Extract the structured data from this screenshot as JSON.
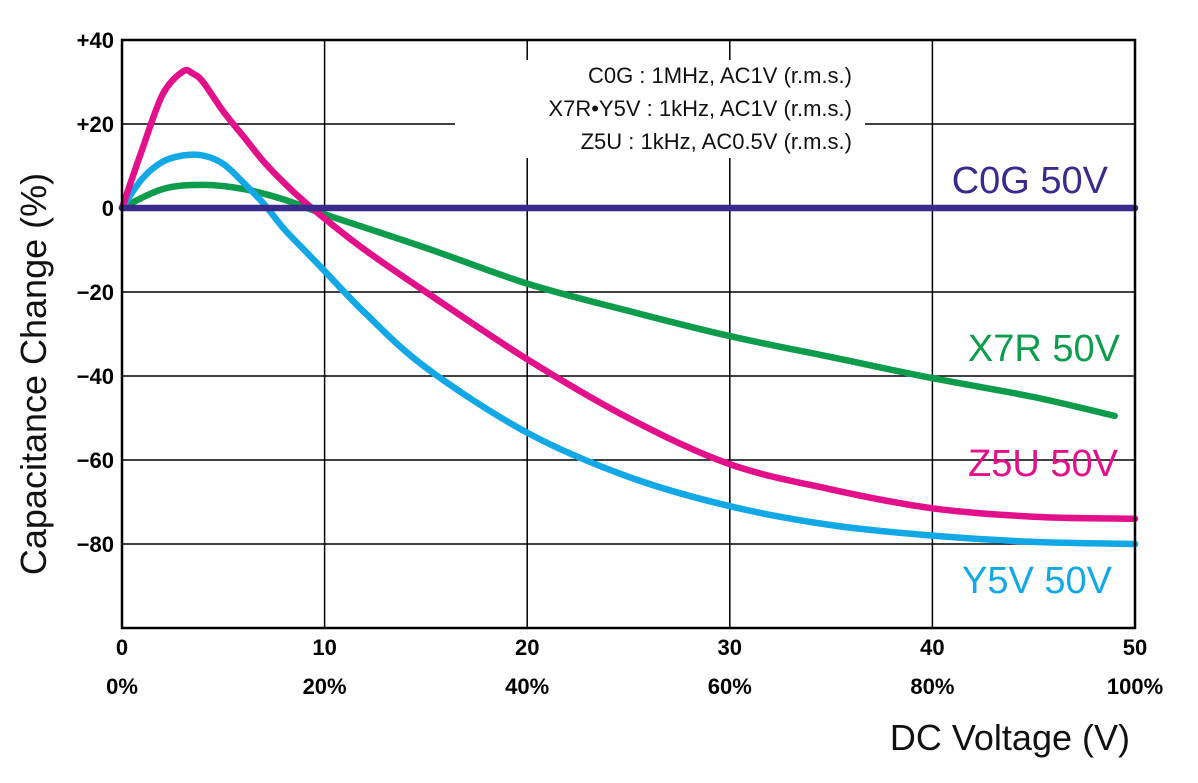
{
  "chart_data": {
    "type": "line",
    "ylabel": "Capacitance Change (%)",
    "xlabel": "DC Voltage (V)",
    "xlim": [
      0,
      50
    ],
    "ylim": [
      -100,
      40
    ],
    "grid": true,
    "x_ticks": [
      "0",
      "10",
      "20",
      "30",
      "40",
      "50"
    ],
    "x_ticks_percent": [
      "0%",
      "20%",
      "40%",
      "60%",
      "80%",
      "100%"
    ],
    "y_ticks": [
      {
        "value": 40,
        "label": "+40"
      },
      {
        "value": 20,
        "label": "+20"
      },
      {
        "value": 0,
        "label": "0"
      },
      {
        "value": -20,
        "label": "−20"
      },
      {
        "value": -40,
        "label": "−40"
      },
      {
        "value": -60,
        "label": "−60"
      },
      {
        "value": -80,
        "label": "−80"
      }
    ],
    "conditions": [
      "C0G : 1MHz, AC1V (r.m.s.)",
      "X7R•Y5V : 1kHz, AC1V (r.m.s.)",
      "Z5U : 1kHz, AC0.5V (r.m.s.)"
    ],
    "series": [
      {
        "name": "C0G 50V",
        "color": "#3a2a8c",
        "x": [
          0,
          10,
          20,
          30,
          40,
          50
        ],
        "y": [
          0,
          0,
          0,
          0,
          0,
          0
        ]
      },
      {
        "name": "X7R 50V",
        "color": "#0d9b4c",
        "x": [
          0,
          2,
          4,
          6,
          8,
          10,
          15,
          20,
          25,
          30,
          35,
          40,
          45,
          49
        ],
        "y": [
          0,
          4.5,
          5.5,
          4.5,
          2,
          -1.5,
          -9.5,
          -18,
          -24.5,
          -30.5,
          -35.5,
          -40.5,
          -45,
          -49.5
        ]
      },
      {
        "name": "Z5U 50V",
        "color": "#e2108a",
        "x": [
          0,
          1,
          2,
          3,
          3.5,
          4,
          5,
          6,
          7,
          8,
          9,
          10,
          12,
          15,
          20,
          25,
          30,
          35,
          40,
          45,
          50
        ],
        "y": [
          0,
          14,
          27,
          32.5,
          32,
          30,
          23,
          17,
          11,
          6,
          1.5,
          -2.5,
          -10,
          -20,
          -36,
          -50,
          -61,
          -67,
          -71.5,
          -73.5,
          -74
        ]
      },
      {
        "name": "Y5V 50V",
        "color": "#12a8e6",
        "x": [
          0,
          1,
          2,
          3,
          4,
          5,
          6,
          7,
          8,
          9,
          10,
          12,
          15,
          20,
          25,
          30,
          35,
          40,
          45,
          50
        ],
        "y": [
          0,
          7,
          11,
          12.5,
          12.5,
          10.5,
          6,
          1,
          -5,
          -10,
          -15,
          -25,
          -38,
          -53.5,
          -64,
          -71,
          -75.5,
          -78,
          -79.5,
          -80
        ]
      }
    ]
  }
}
